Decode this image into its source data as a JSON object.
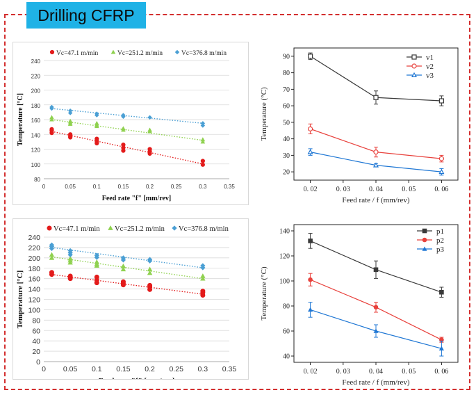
{
  "page_title": "Drilling CFRP",
  "colors": {
    "frame": "#d32f2f",
    "tab": "#1fb2e6"
  },
  "chart_data": [
    {
      "type": "scatter",
      "xlabel": "Feed rate \"f\" [mm/rev]",
      "ylabel": "Temperature [°C]",
      "xlim": [
        0,
        0.35
      ],
      "ylim": [
        80,
        240
      ],
      "xticks": [
        "0",
        "0.05",
        "0.1",
        "0.15",
        "0.2",
        "0.25",
        "0.3",
        "0.35"
      ],
      "yticks": [
        "80",
        "100",
        "120",
        "140",
        "160",
        "180",
        "200",
        "220",
        "240"
      ],
      "legend_position": "top",
      "trendlines": "dotted linear",
      "series": [
        {
          "name": "Vc=47.1 m/min",
          "color": "#e31b1b",
          "marker": "circle",
          "x": [
            0.015,
            0.015,
            0.015,
            0.05,
            0.05,
            0.05,
            0.1,
            0.1,
            0.1,
            0.15,
            0.15,
            0.15,
            0.2,
            0.2,
            0.2,
            0.3,
            0.3
          ],
          "y": [
            142,
            145,
            147,
            136,
            138,
            140,
            128,
            131,
            134,
            118,
            122,
            126,
            114,
            117,
            120,
            99,
            104
          ],
          "fit": [
            144,
            100
          ]
        },
        {
          "name": "Vc=251.2 m/min",
          "color": "#8fd14f",
          "marker": "triangle",
          "x": [
            0.015,
            0.015,
            0.05,
            0.05,
            0.05,
            0.1,
            0.1,
            0.1,
            0.15,
            0.15,
            0.2,
            0.2,
            0.3,
            0.3
          ],
          "y": [
            160,
            163,
            154,
            156,
            158,
            151,
            153,
            155,
            146,
            148,
            144,
            146,
            130,
            133
          ],
          "fit": [
            160,
            132
          ]
        },
        {
          "name": "Vc=376.8 m/min",
          "color": "#4a9fd4",
          "marker": "diamond",
          "x": [
            0.015,
            0.015,
            0.05,
            0.05,
            0.1,
            0.1,
            0.15,
            0.15,
            0.2,
            0.3,
            0.3
          ],
          "y": [
            175,
            177,
            169,
            172,
            166,
            168,
            164,
            166,
            163,
            152,
            155
          ],
          "fit": [
            175,
            155
          ]
        }
      ]
    },
    {
      "type": "line",
      "xlabel": "Feed rate / f (mm/rev)",
      "ylabel": "Temperature (°C)",
      "xlim": [
        0.015,
        0.065
      ],
      "ylim": [
        15,
        95
      ],
      "xticks": [
        "0. 02",
        "0. 03",
        "0. 04",
        "0. 05",
        "0. 06"
      ],
      "xtick_values": [
        0.02,
        0.03,
        0.04,
        0.05,
        0.06
      ],
      "yticks": [
        "20",
        "30",
        "40",
        "50",
        "60",
        "70",
        "80",
        "90"
      ],
      "legend_position": "top-right",
      "series": [
        {
          "name": "v1",
          "color": "#3a3a3a",
          "marker": "square-open",
          "x": [
            0.02,
            0.04,
            0.06
          ],
          "y": [
            90,
            65,
            63
          ],
          "err": [
            2,
            4,
            3
          ]
        },
        {
          "name": "v2",
          "color": "#e8413c",
          "marker": "circle-open",
          "x": [
            0.02,
            0.04,
            0.06
          ],
          "y": [
            46,
            32,
            28
          ],
          "err": [
            3,
            3,
            2
          ]
        },
        {
          "name": "v3",
          "color": "#1f77d4",
          "marker": "triangle-open",
          "x": [
            0.02,
            0.04,
            0.06
          ],
          "y": [
            32,
            24,
            20
          ],
          "err": [
            2,
            1,
            2
          ]
        }
      ]
    },
    {
      "type": "scatter",
      "xlabel": "Feed rate \"f\" [mm/rev]",
      "ylabel": "Temperature [°C]",
      "xlim": [
        0,
        0.35
      ],
      "ylim": [
        0,
        240
      ],
      "xticks": [
        "0",
        "0.05",
        "0.1",
        "0.15",
        "0.2",
        "0.25",
        "0.3",
        "0.35"
      ],
      "yticks": [
        "0",
        "20",
        "40",
        "60",
        "80",
        "100",
        "120",
        "140",
        "160",
        "180",
        "200",
        "220",
        "240"
      ],
      "legend_position": "top",
      "trendlines": "dotted linear",
      "series": [
        {
          "name": "Vc=47.1 m/min",
          "color": "#e31b1b",
          "marker": "circle",
          "x": [
            0.015,
            0.015,
            0.05,
            0.05,
            0.05,
            0.1,
            0.1,
            0.1,
            0.15,
            0.15,
            0.15,
            0.2,
            0.2,
            0.2,
            0.3,
            0.3,
            0.3
          ],
          "y": [
            168,
            172,
            160,
            163,
            165,
            152,
            157,
            163,
            148,
            151,
            154,
            139,
            144,
            147,
            128,
            133,
            136
          ],
          "fit": [
            168,
            130
          ]
        },
        {
          "name": "Vc=251.2 m/min",
          "color": "#8fd14f",
          "marker": "triangle",
          "x": [
            0.015,
            0.015,
            0.05,
            0.05,
            0.05,
            0.1,
            0.1,
            0.1,
            0.15,
            0.15,
            0.2,
            0.2,
            0.3,
            0.3
          ],
          "y": [
            200,
            206,
            191,
            195,
            199,
            185,
            188,
            192,
            178,
            184,
            171,
            178,
            160,
            165
          ],
          "fit": [
            202,
            160
          ]
        },
        {
          "name": "Vc=376.8 m/min",
          "color": "#4a9fd4",
          "marker": "diamond",
          "x": [
            0.015,
            0.015,
            0.015,
            0.05,
            0.05,
            0.05,
            0.1,
            0.1,
            0.15,
            0.15,
            0.2,
            0.2,
            0.3,
            0.3
          ],
          "y": [
            218,
            222,
            225,
            206,
            210,
            214,
            201,
            205,
            196,
            200,
            194,
            197,
            181,
            185
          ],
          "fit": [
            220,
            181
          ]
        }
      ]
    },
    {
      "type": "line",
      "xlabel": "Feed rate / f (mm/rev)",
      "ylabel": "Temperature (°C)",
      "xlim": [
        0.015,
        0.065
      ],
      "ylim": [
        35,
        145
      ],
      "xticks": [
        "0. 02",
        "0. 03",
        "0. 04",
        "0. 05",
        "0. 06"
      ],
      "xtick_values": [
        0.02,
        0.03,
        0.04,
        0.05,
        0.06
      ],
      "yticks": [
        "40",
        "60",
        "80",
        "100",
        "120",
        "140"
      ],
      "legend_position": "top-right",
      "series": [
        {
          "name": "p1",
          "color": "#3a3a3a",
          "marker": "square",
          "x": [
            0.02,
            0.04,
            0.06
          ],
          "y": [
            132,
            109,
            91
          ],
          "err": [
            6,
            7,
            4
          ]
        },
        {
          "name": "p2",
          "color": "#e8413c",
          "marker": "circle",
          "x": [
            0.02,
            0.04,
            0.06
          ],
          "y": [
            101,
            79,
            53
          ],
          "err": [
            5,
            4,
            2
          ]
        },
        {
          "name": "p3",
          "color": "#1f77d4",
          "marker": "triangle",
          "x": [
            0.02,
            0.04,
            0.06
          ],
          "y": [
            77,
            60,
            46
          ],
          "err": [
            6,
            5,
            6
          ]
        }
      ]
    }
  ]
}
